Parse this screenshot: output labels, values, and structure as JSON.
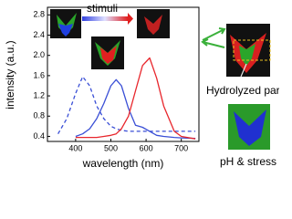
{
  "chart_data": {
    "type": "line",
    "x_label": "wavelength (nm)",
    "y_label": "intensity (a.u.)",
    "annotations": [
      "stimuli",
      "Hydrolyzed part",
      "pH & stress"
    ],
    "x": [
      350,
      375,
      400,
      420,
      440,
      460,
      480,
      500,
      515,
      530,
      550,
      570,
      590,
      610,
      630,
      650,
      680,
      700,
      740
    ],
    "series": [
      {
        "color": "#3a4fd6",
        "dash": true,
        "values": [
          0.45,
          0.75,
          1.25,
          1.58,
          1.4,
          1.0,
          0.75,
          0.6,
          0.55,
          0.52,
          0.5,
          0.5,
          0.5,
          0.5,
          0.5,
          0.5,
          0.5,
          0.5,
          0.5
        ]
      },
      {
        "color": "#3a4fd6",
        "dash": false,
        "values": [
          null,
          null,
          0.4,
          0.45,
          0.55,
          0.75,
          1.05,
          1.4,
          1.52,
          1.4,
          0.95,
          0.62,
          0.58,
          0.5,
          0.42,
          0.4,
          0.38,
          0.37,
          0.36
        ]
      },
      {
        "color": "#e8262c",
        "dash": false,
        "values": [
          null,
          null,
          0.38,
          0.38,
          0.38,
          0.38,
          0.4,
          0.42,
          0.45,
          0.55,
          0.8,
          1.3,
          1.8,
          1.95,
          1.55,
          1.0,
          0.5,
          0.4,
          0.35
        ]
      }
    ],
    "xlim": [
      320,
      750
    ],
    "xticks": [
      400,
      500,
      600,
      700
    ],
    "ylim": [
      0.3,
      2.95
    ],
    "yticks": [
      0.4,
      0.8,
      1.2,
      1.6,
      {
        "value": 2,
        "label": "2.0"
      },
      2.4,
      2.8
    ]
  }
}
